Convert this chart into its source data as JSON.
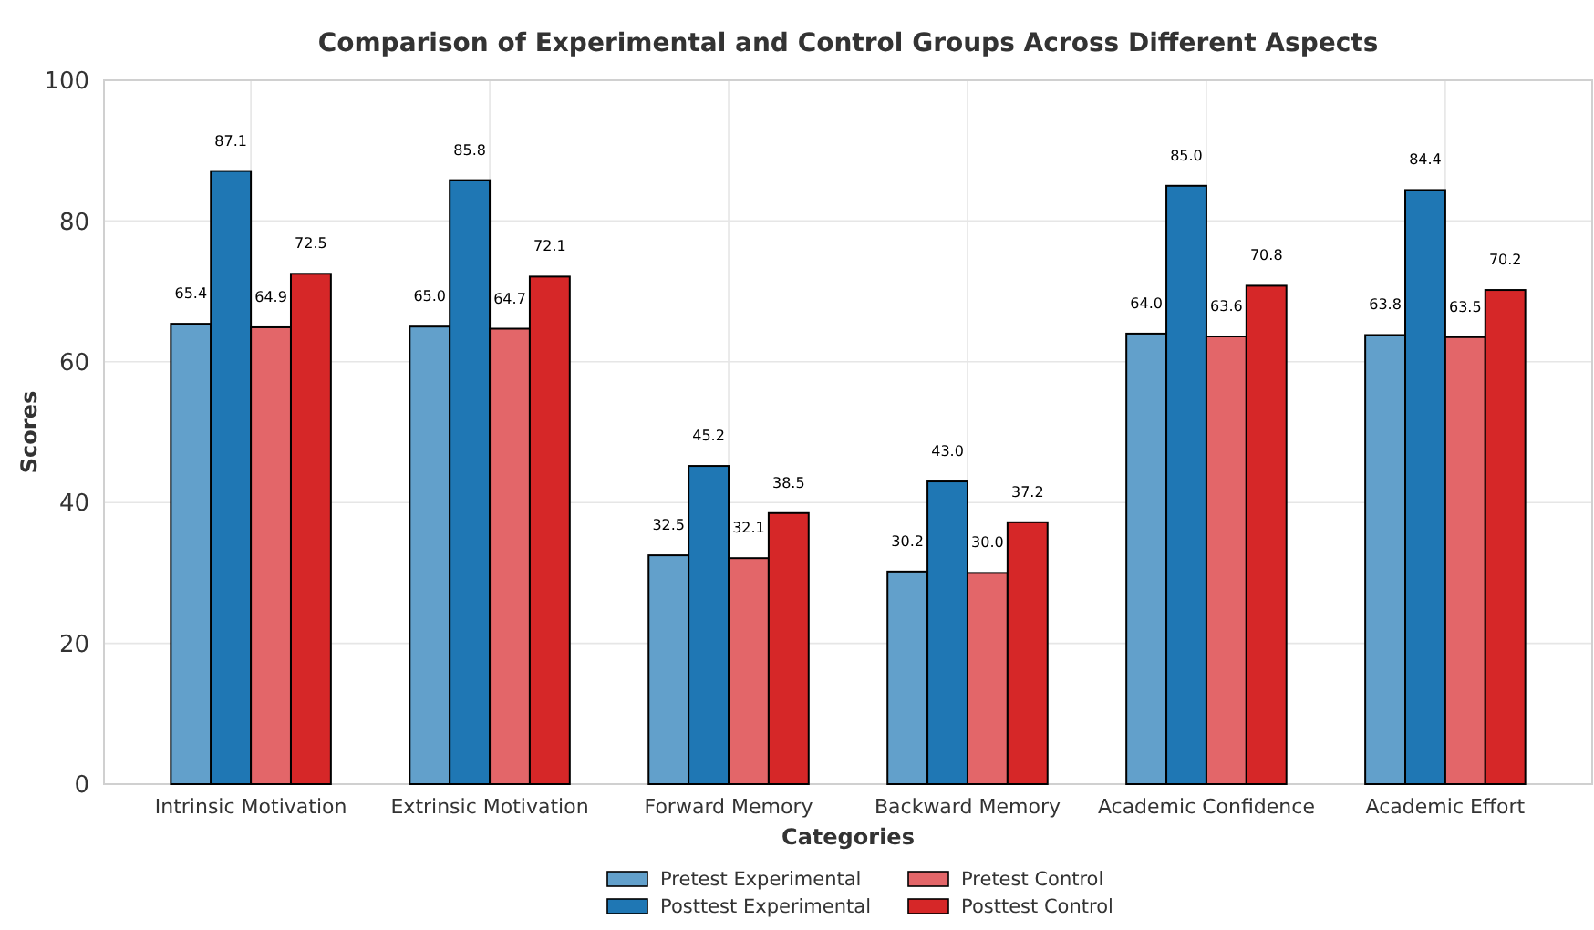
{
  "chart_data": {
    "type": "bar",
    "title": "Comparison of Experimental and Control Groups Across Different Aspects",
    "xlabel": "Categories",
    "ylabel": "Scores",
    "categories": [
      "Intrinsic Motivation",
      "Extrinsic Motivation",
      "Forward Memory",
      "Backward Memory",
      "Academic Confidence",
      "Academic Effort"
    ],
    "series": [
      {
        "name": "Pretest Experimental",
        "color": "#62a0cb",
        "values": [
          65.4,
          65.0,
          32.5,
          30.2,
          64.0,
          63.8
        ],
        "value_labels": [
          "65.4",
          "65.0",
          "32.5",
          "30.2",
          "64.0",
          "63.8"
        ]
      },
      {
        "name": "Posttest Experimental",
        "color": "#1f77b4",
        "values": [
          87.1,
          85.8,
          45.2,
          43.0,
          85.0,
          84.4
        ],
        "value_labels": [
          "87.1",
          "85.8",
          "45.2",
          "43.0",
          "85.0",
          "84.4"
        ]
      },
      {
        "name": "Pretest Control",
        "color": "#e36669",
        "values": [
          64.9,
          64.7,
          32.1,
          30.0,
          63.6,
          63.5
        ],
        "value_labels": [
          "64.9",
          "64.7",
          "32.1",
          "30.0",
          "63.6",
          "63.5"
        ]
      },
      {
        "name": "Posttest Control",
        "color": "#d62728",
        "values": [
          72.5,
          72.1,
          38.5,
          37.2,
          70.8,
          70.2
        ],
        "value_labels": [
          "72.5",
          "72.1",
          "38.5",
          "37.2",
          "70.8",
          "70.2"
        ]
      }
    ],
    "ylim": [
      0,
      100
    ],
    "yticks": [
      0,
      20,
      40,
      60,
      80,
      100
    ],
    "grid": true,
    "legend": "bottom"
  }
}
